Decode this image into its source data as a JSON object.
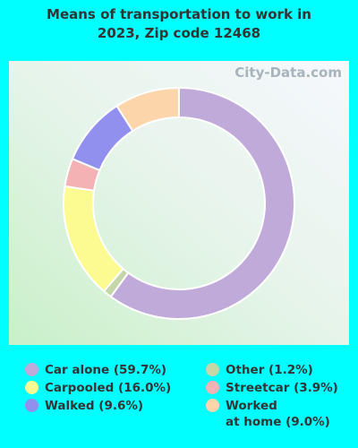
{
  "chart_data": {
    "type": "donut",
    "title": "Means of transportation to work in\n2023, Zip code 12468",
    "watermark": "City-Data.com",
    "categories": [
      "Car alone (59.7%)",
      "Other (1.2%)",
      "Carpooled (16.0%)",
      "Streetcar (3.9%)",
      "Walked (9.6%)",
      "Worked\nat home (9.0%)"
    ],
    "values": [
      59.7,
      1.2,
      16.0,
      3.9,
      9.6,
      9.0
    ],
    "colors": [
      "#c0aad9",
      "#c5d6a9",
      "#fcfb92",
      "#f4b2b5",
      "#9190ef",
      "#fdd5aa"
    ]
  }
}
